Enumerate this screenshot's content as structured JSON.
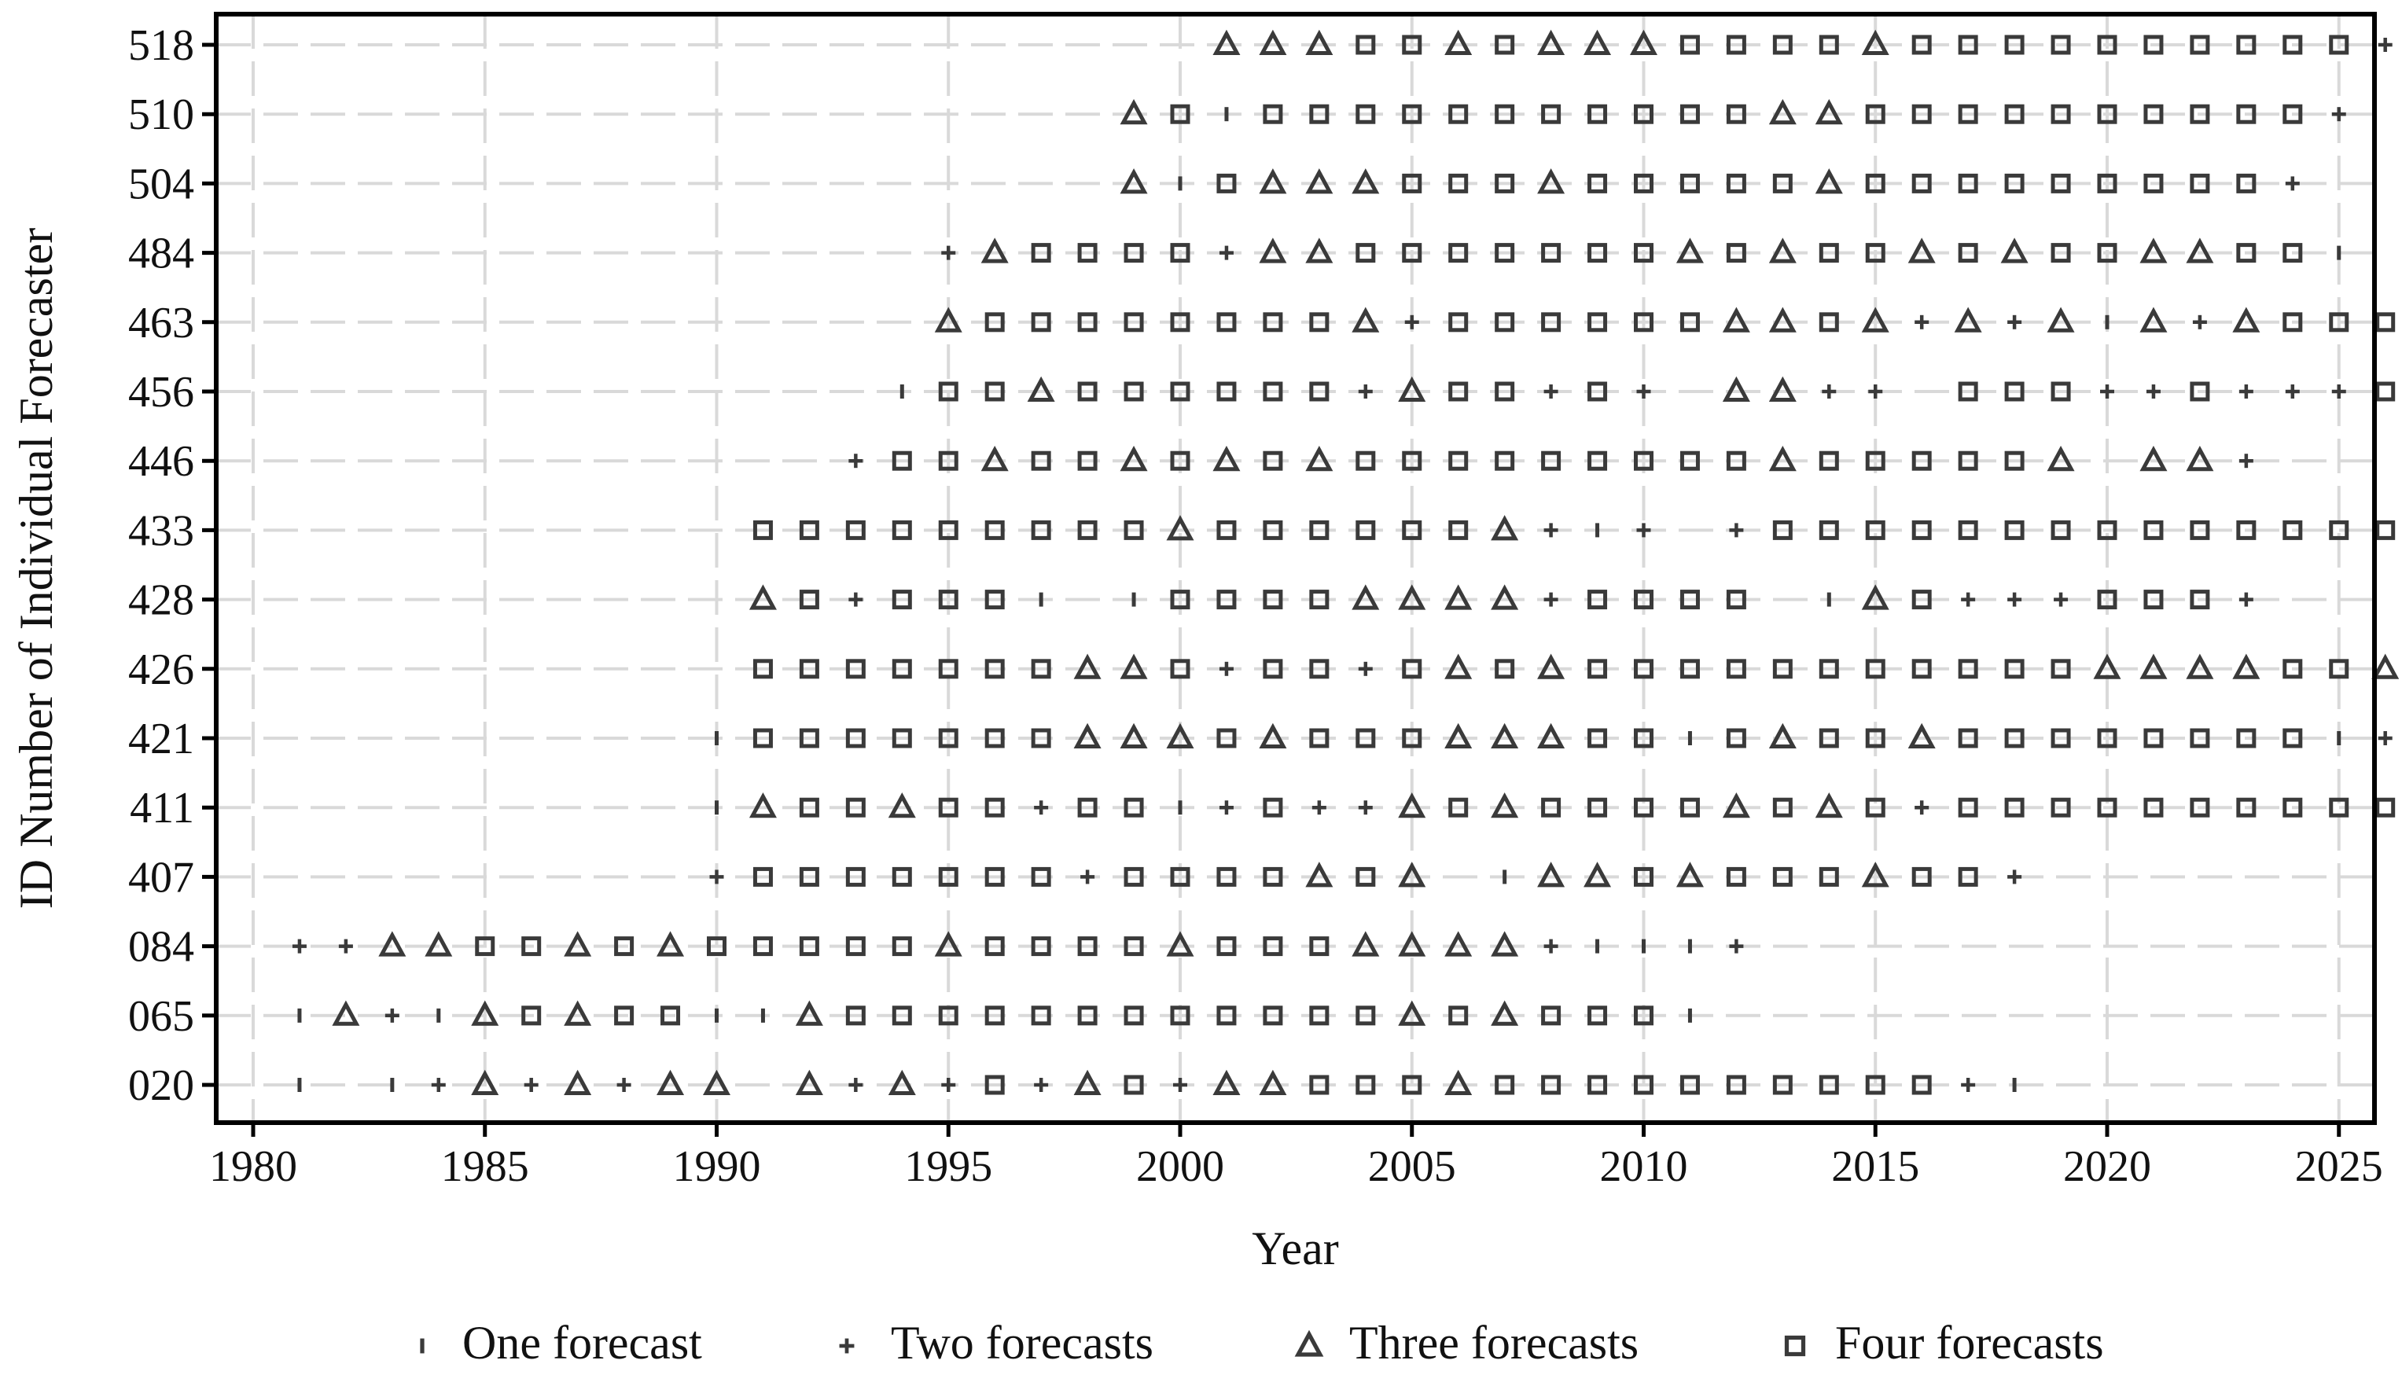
{
  "chart_data": {
    "type": "scatter",
    "title": "",
    "xlabel": "Year",
    "ylabel": "ID Number of Individual Forecaster",
    "xlim": [
      1980,
      2025
    ],
    "x_ticks": [
      1980,
      1985,
      1990,
      1995,
      2000,
      2005,
      2010,
      2015,
      2020,
      2025
    ],
    "x_tick_labels": [
      "1980",
      "1985",
      "1990",
      "1995",
      "2000",
      "2005",
      "2010",
      "2015",
      "2020",
      "2025"
    ],
    "grid": true,
    "legend_position": "bottom",
    "marker_color": "#3a3a3a",
    "legend": [
      {
        "code": 1,
        "marker": "vertical-bar",
        "label": "One forecast"
      },
      {
        "code": 2,
        "marker": "plus",
        "label": "Two forecasts"
      },
      {
        "code": 3,
        "marker": "triangle",
        "label": "Three forecasts"
      },
      {
        "code": 4,
        "marker": "square",
        "label": "Four forecasts"
      }
    ],
    "forecasters": [
      {
        "id": "518",
        "start": 2001,
        "counts": "33344343334444344444444442"
      },
      {
        "id": "510",
        "start": 1999,
        "counts": "341444444444443344444444442"
      },
      {
        "id": "504",
        "start": 1999,
        "counts": "31433344434444434444444442"
      },
      {
        "id": "484",
        "start": 1995,
        "counts": "2344442334444444343443434433441"
      },
      {
        "id": "463",
        "start": 1995,
        "counts": "344444444324444443343232313234442"
      },
      {
        "id": "456",
        "start": 1994,
        "counts": "14434444442344242033220444224222443"
      },
      {
        "id": "446",
        "start": 1993,
        "counts": "2443443434344444444434444430332"
      },
      {
        "id": "433",
        "start": 1991,
        "counts": "44444444434444443212024444444444444442"
      },
      {
        "id": "428",
        "start": 1991,
        "counts": "342444101444433332444401342224442"
      },
      {
        "id": "426",
        "start": 1991,
        "counts": "444444433424424343444444444443333443"
      },
      {
        "id": "421",
        "start": 1990,
        "counts": "14444444333434443334414344344444444122"
      },
      {
        "id": "411",
        "start": 1990,
        "counts": "134434424412422343444434342444444444442"
      },
      {
        "id": "407",
        "start": 1990,
        "counts": "24444444244443430133434443442"
      },
      {
        "id": "084",
        "start": 1981,
        "counts": "22334434344444344443444333321112"
      },
      {
        "id": "065",
        "start": 1981,
        "counts": "1321343441134444444444443434441"
      },
      {
        "id": "020",
        "start": 1981,
        "counts": "10123232330323242342334443444444444421"
      }
    ]
  }
}
